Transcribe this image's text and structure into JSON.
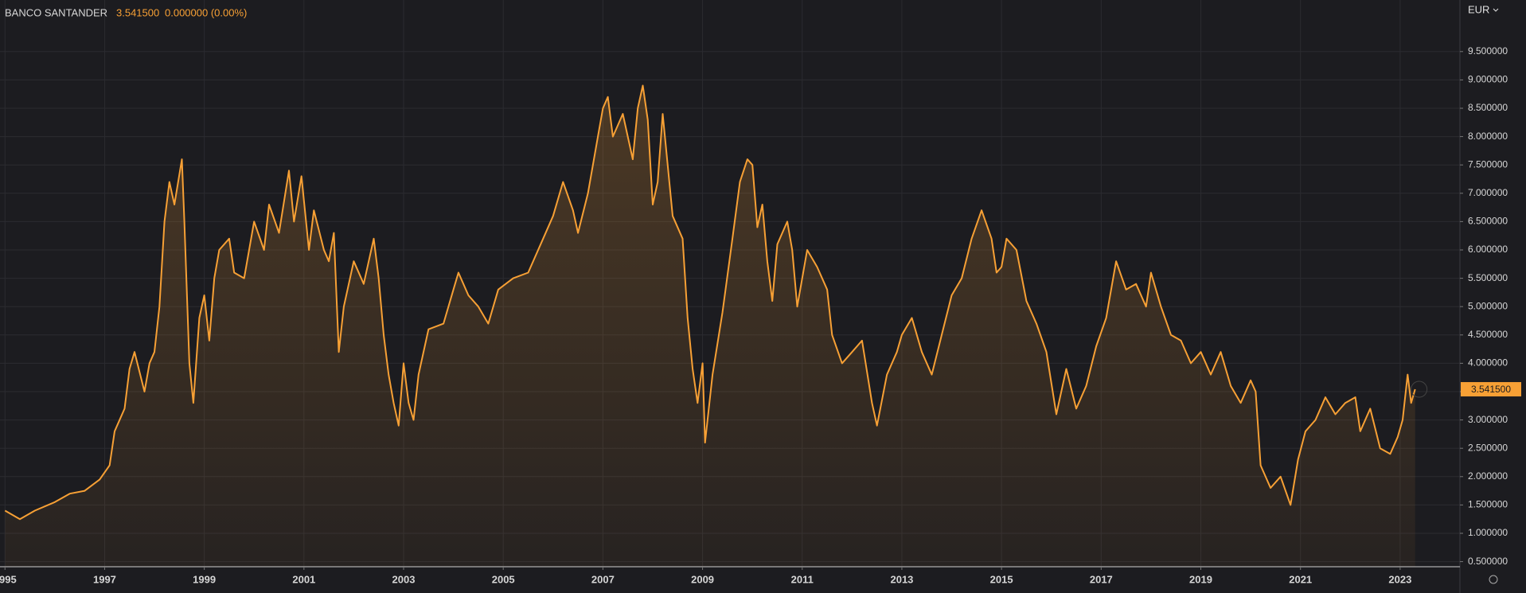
{
  "chart_data": {
    "type": "area",
    "title": "BANCO SANTANDER",
    "price": "3.541500",
    "change": "0.000000 (0.00%)",
    "currency": "EUR",
    "color": "#f7a035",
    "grid": true,
    "x": [
      1995.0,
      1995.3,
      1995.6,
      1996.0,
      1996.3,
      1996.6,
      1996.9,
      1997.1,
      1997.2,
      1997.4,
      1997.5,
      1997.6,
      1997.8,
      1997.9,
      1998.0,
      1998.1,
      1998.2,
      1998.3,
      1998.4,
      1998.55,
      1998.6,
      1998.7,
      1998.78,
      1998.9,
      1999.0,
      1999.1,
      1999.2,
      1999.3,
      1999.5,
      1999.6,
      1999.8,
      2000.0,
      2000.2,
      2000.3,
      2000.5,
      2000.7,
      2000.8,
      2000.95,
      2001.1,
      2001.2,
      2001.4,
      2001.5,
      2001.6,
      2001.7,
      2001.8,
      2002.0,
      2002.2,
      2002.4,
      2002.5,
      2002.6,
      2002.7,
      2002.8,
      2002.9,
      2003.0,
      2003.1,
      2003.2,
      2003.3,
      2003.5,
      2003.8,
      2004.0,
      2004.1,
      2004.3,
      2004.5,
      2004.7,
      2004.9,
      2005.2,
      2005.5,
      2005.8,
      2006.0,
      2006.2,
      2006.4,
      2006.5,
      2006.7,
      2006.9,
      2007.0,
      2007.1,
      2007.2,
      2007.4,
      2007.6,
      2007.7,
      2007.8,
      2007.9,
      2008.0,
      2008.1,
      2008.2,
      2008.4,
      2008.6,
      2008.7,
      2008.8,
      2008.9,
      2009.0,
      2009.05,
      2009.2,
      2009.4,
      2009.6,
      2009.75,
      2009.9,
      2010.0,
      2010.1,
      2010.2,
      2010.3,
      2010.4,
      2010.5,
      2010.7,
      2010.8,
      2010.9,
      2011.1,
      2011.3,
      2011.5,
      2011.6,
      2011.8,
      2012.0,
      2012.2,
      2012.4,
      2012.5,
      2012.7,
      2012.9,
      2013.0,
      2013.2,
      2013.4,
      2013.6,
      2013.8,
      2014.0,
      2014.2,
      2014.4,
      2014.6,
      2014.8,
      2014.9,
      2015.0,
      2015.1,
      2015.3,
      2015.5,
      2015.7,
      2015.9,
      2016.1,
      2016.3,
      2016.5,
      2016.7,
      2016.9,
      2017.1,
      2017.3,
      2017.5,
      2017.7,
      2017.9,
      2018.0,
      2018.2,
      2018.4,
      2018.6,
      2018.8,
      2019.0,
      2019.2,
      2019.4,
      2019.6,
      2019.8,
      2020.0,
      2020.1,
      2020.2,
      2020.4,
      2020.6,
      2020.8,
      2020.95,
      2021.1,
      2021.3,
      2021.5,
      2021.7,
      2021.9,
      2022.1,
      2022.2,
      2022.4,
      2022.6,
      2022.8,
      2022.95,
      2023.05,
      2023.15,
      2023.22,
      2023.3
    ],
    "values": [
      1.4,
      1.25,
      1.4,
      1.55,
      1.7,
      1.75,
      1.95,
      2.2,
      2.8,
      3.2,
      3.9,
      4.2,
      3.5,
      4.0,
      4.2,
      5.0,
      6.5,
      7.2,
      6.8,
      7.6,
      6.5,
      4.0,
      3.3,
      4.8,
      5.2,
      4.4,
      5.5,
      6.0,
      6.2,
      5.6,
      5.5,
      6.5,
      6.0,
      6.8,
      6.3,
      7.4,
      6.5,
      7.3,
      6.0,
      6.7,
      6.0,
      5.8,
      6.3,
      4.2,
      5.0,
      5.8,
      5.4,
      6.2,
      5.5,
      4.5,
      3.8,
      3.3,
      2.9,
      4.0,
      3.3,
      3.0,
      3.8,
      4.6,
      4.7,
      5.3,
      5.6,
      5.2,
      5.0,
      4.7,
      5.3,
      5.5,
      5.6,
      6.2,
      6.6,
      7.2,
      6.7,
      6.3,
      7.0,
      8.0,
      8.5,
      8.7,
      8.0,
      8.4,
      7.6,
      8.5,
      8.9,
      8.3,
      6.8,
      7.2,
      8.4,
      6.6,
      6.2,
      4.8,
      3.9,
      3.3,
      4.0,
      2.6,
      3.8,
      4.9,
      6.2,
      7.2,
      7.6,
      7.5,
      6.4,
      6.8,
      5.8,
      5.1,
      6.1,
      6.5,
      6.0,
      5.0,
      6.0,
      5.7,
      5.3,
      4.5,
      4.0,
      4.2,
      4.4,
      3.3,
      2.9,
      3.8,
      4.2,
      4.5,
      4.8,
      4.2,
      3.8,
      4.5,
      5.2,
      5.5,
      6.2,
      6.7,
      6.2,
      5.6,
      5.7,
      6.2,
      6.0,
      5.1,
      4.7,
      4.2,
      3.1,
      3.9,
      3.2,
      3.6,
      4.3,
      4.8,
      5.8,
      5.3,
      5.4,
      5.0,
      5.6,
      5.0,
      4.5,
      4.4,
      4.0,
      4.2,
      3.8,
      4.2,
      3.6,
      3.3,
      3.7,
      3.5,
      2.2,
      1.8,
      2.0,
      1.5,
      2.3,
      2.8,
      3.0,
      3.4,
      3.1,
      3.3,
      3.4,
      2.8,
      3.2,
      2.5,
      2.4,
      2.7,
      3.0,
      3.8,
      3.3,
      3.5415
    ],
    "xlim": [
      1994.9,
      2024.2
    ],
    "xticks": [
      1995,
      1997,
      1999,
      2001,
      2003,
      2005,
      2007,
      2009,
      2011,
      2013,
      2015,
      2017,
      2019,
      2021,
      2023
    ],
    "ylim": [
      0.41,
      10.41
    ],
    "yticks": [
      {
        "value": 0.5,
        "label": "0.500000"
      },
      {
        "value": 1,
        "label": "1.000000"
      },
      {
        "value": 1.5,
        "label": "1.500000"
      },
      {
        "value": 2,
        "label": "2.000000"
      },
      {
        "value": 2.5,
        "label": "2.500000"
      },
      {
        "value": 3,
        "label": "3.000000"
      },
      {
        "value": 3.5,
        "label": "3.500000"
      },
      {
        "value": 4,
        "label": "4.000000"
      },
      {
        "value": 4.5,
        "label": "4.500000"
      },
      {
        "value": 5,
        "label": "5.000000"
      },
      {
        "value": 5.5,
        "label": "5.500000"
      },
      {
        "value": 6,
        "label": "6.000000"
      },
      {
        "value": 6.5,
        "label": "6.500000"
      },
      {
        "value": 7,
        "label": "7.000000"
      },
      {
        "value": 7.5,
        "label": "7.500000"
      },
      {
        "value": 8,
        "label": "8.000000"
      },
      {
        "value": 8.5,
        "label": "8.500000"
      },
      {
        "value": 9,
        "label": "9.000000"
      },
      {
        "value": 9.5,
        "label": "9.500000"
      }
    ]
  }
}
